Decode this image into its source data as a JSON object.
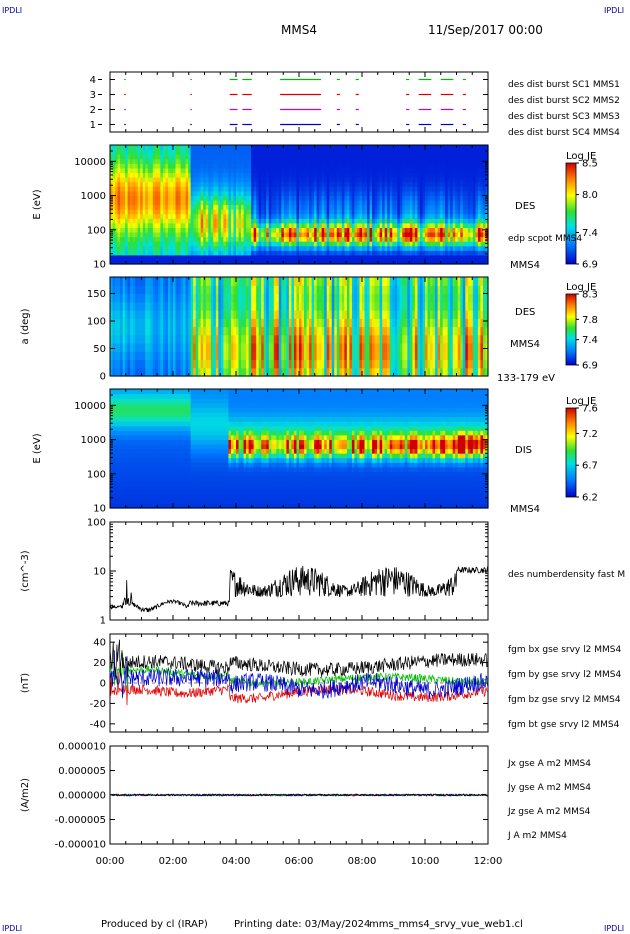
{
  "header": {
    "corner_tl": "IPDLI",
    "corner_tr": "IPDLI",
    "corner_bl": "IPDLI",
    "corner_br": "IPDLI",
    "spacecraft": "MMS4",
    "date": "11/Sep/2017 00:00"
  },
  "footer": {
    "produced_by": "Produced by cl (IRAP)",
    "printing_date": "Printing date: 03/May/2024",
    "filename": "mms_mms4_srvy_vue_web1.cl"
  },
  "colors": {
    "blue": "#0000cc",
    "magenta": "#cc00cc",
    "red": "#dd0000",
    "green": "#00bb00",
    "black": "#000000"
  },
  "chart_data": [
    {
      "type": "scatter",
      "id": "burst",
      "ylim": [
        0.5,
        4.5
      ],
      "yticks": [
        "1",
        "2",
        "3",
        "4"
      ],
      "series": [
        {
          "name": "des dist burst SC1 MMS1",
          "level": 1,
          "color": "#0000cc",
          "intervals": [
            [
              0.45,
              0.5
            ],
            [
              2.55,
              2.58
            ],
            [
              3.8,
              4.05
            ],
            [
              4.2,
              4.5
            ],
            [
              5.4,
              6.7
            ],
            [
              7.2,
              7.3
            ],
            [
              7.8,
              7.9
            ],
            [
              9.4,
              9.5
            ],
            [
              9.8,
              10.2
            ],
            [
              10.5,
              10.9
            ],
            [
              11.2,
              11.3
            ]
          ]
        },
        {
          "name": "des dist burst SC2 MMS2",
          "level": 2,
          "color": "#cc00cc",
          "intervals": [
            [
              0.45,
              0.5
            ],
            [
              2.55,
              2.58
            ],
            [
              3.8,
              4.05
            ],
            [
              4.2,
              4.5
            ],
            [
              5.4,
              6.7
            ],
            [
              7.2,
              7.3
            ],
            [
              7.8,
              7.9
            ],
            [
              9.4,
              9.5
            ],
            [
              9.8,
              10.2
            ],
            [
              10.5,
              10.9
            ],
            [
              11.2,
              11.3
            ]
          ]
        },
        {
          "name": "des dist burst SC3 MMS3",
          "level": 3,
          "color": "#dd0000",
          "intervals": [
            [
              0.45,
              0.5
            ],
            [
              2.55,
              2.58
            ],
            [
              3.8,
              4.05
            ],
            [
              4.2,
              4.5
            ],
            [
              5.4,
              6.7
            ],
            [
              7.2,
              7.3
            ],
            [
              7.8,
              7.9
            ],
            [
              9.4,
              9.5
            ],
            [
              9.8,
              10.2
            ],
            [
              10.5,
              10.9
            ],
            [
              11.2,
              11.3
            ]
          ]
        },
        {
          "name": "des dist burst SC4 MMS4",
          "level": 4,
          "color": "#00bb00",
          "intervals": [
            [
              0.45,
              0.5
            ],
            [
              2.55,
              2.58
            ],
            [
              3.8,
              4.05
            ],
            [
              4.2,
              4.5
            ],
            [
              5.4,
              6.7
            ],
            [
              7.2,
              7.3
            ],
            [
              7.8,
              7.9
            ],
            [
              9.4,
              9.5
            ],
            [
              9.8,
              10.2
            ],
            [
              10.5,
              10.9
            ],
            [
              11.2,
              11.3
            ]
          ]
        }
      ]
    },
    {
      "type": "heatmap",
      "id": "des_energy",
      "ylabel": "E (eV)",
      "yscale": "log",
      "ylim": [
        10,
        30000
      ],
      "yticks": [
        "10",
        "100",
        "1000",
        "10000"
      ],
      "label": "DES",
      "overlay_label": "edp scpot MMS4",
      "spacecraft_label": "MMS4",
      "colorbar": {
        "title": "Log JE",
        "ticks": [
          "6.9",
          "7.4",
          "8.0",
          "8.5"
        ],
        "min": 6.9,
        "max": 8.5
      }
    },
    {
      "type": "heatmap",
      "id": "des_pitch",
      "ylabel": "a (deg)",
      "ylim": [
        0,
        180
      ],
      "yticks": [
        "0",
        "50",
        "100",
        "150"
      ],
      "label": "DES",
      "spacecraft_label": "MMS4",
      "energy_range": "133-179 eV",
      "colorbar": {
        "title": "Log JE",
        "ticks": [
          "6.9",
          "7.4",
          "7.8",
          "8.3"
        ],
        "min": 6.9,
        "max": 8.3
      }
    },
    {
      "type": "heatmap",
      "id": "dis_energy",
      "ylabel": "E (eV)",
      "yscale": "log",
      "ylim": [
        10,
        30000
      ],
      "yticks": [
        "10",
        "100",
        "1000",
        "10000"
      ],
      "label": "DIS",
      "spacecraft_label": "MMS4",
      "colorbar": {
        "title": "Log JE",
        "ticks": [
          "6.2",
          "6.7",
          "7.2",
          "7.6"
        ],
        "min": 6.2,
        "max": 7.6
      }
    },
    {
      "type": "line",
      "id": "density",
      "ylabel": "(cm^-3)",
      "yscale": "log",
      "ylim": [
        1,
        100
      ],
      "yticks": [
        "1",
        "10",
        "100"
      ],
      "series": [
        {
          "name": "des numberdensity fast M",
          "color": "#000000"
        }
      ]
    },
    {
      "type": "line",
      "id": "fgm",
      "ylabel": "(nT)",
      "ylim": [
        -48,
        48
      ],
      "yticks": [
        "-40",
        "-20",
        "0",
        "20",
        "40"
      ],
      "series": [
        {
          "name": "fgm bx gse srvy l2 MMS4",
          "color": "#dd0000"
        },
        {
          "name": "fgm by gse srvy l2 MMS4",
          "color": "#00bb00"
        },
        {
          "name": "fgm bz gse srvy l2 MMS4",
          "color": "#0000cc"
        },
        {
          "name": "fgm bt gse srvy l2 MMS4",
          "color": "#000000"
        }
      ]
    },
    {
      "type": "line",
      "id": "current",
      "ylabel": "(A/m2)",
      "ylim": [
        -0.0001,
        0.0001
      ],
      "yticks": [
        "-0.000010",
        "-0.000005",
        "0.000000",
        "0.000005",
        "0.000010"
      ],
      "series": [
        {
          "name": "Jx gse A m2 MMS4",
          "color": "#dd0000"
        },
        {
          "name": "Jy gse A m2 MMS4",
          "color": "#00bb00"
        },
        {
          "name": "Jz gse A m2 MMS4",
          "color": "#0000cc"
        },
        {
          "name": "J A m2 MMS4",
          "color": "#000000"
        }
      ]
    }
  ],
  "time_axis": {
    "range_hours": [
      0,
      12
    ],
    "ticks": [
      "00:00",
      "02:00",
      "04:00",
      "06:00",
      "08:00",
      "10:00",
      "12:00"
    ]
  }
}
